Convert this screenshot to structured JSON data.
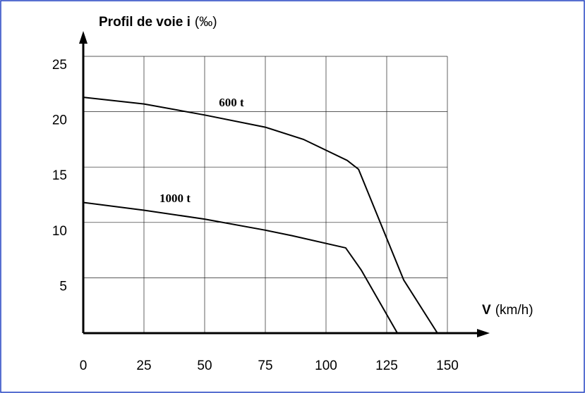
{
  "chart_data": {
    "type": "line",
    "y_label": "Profil de voie i",
    "y_label_unit": "(‰)",
    "x_label": "V",
    "x_label_unit": "(km/h)",
    "xlim": [
      0,
      150
    ],
    "xticks": [
      0,
      25,
      50,
      75,
      100,
      125,
      150
    ],
    "ylim": [
      0,
      25
    ],
    "yticks": [
      5,
      10,
      15,
      20,
      25
    ],
    "grid": true,
    "series": [
      {
        "name": "600 t",
        "color": "#000000",
        "x": [
          0,
          25,
          50,
          75,
          90.7,
          108.7,
          113.4,
          132,
          145.9
        ],
        "values": [
          21.3,
          20.7,
          19.7,
          18.6,
          17.5,
          15.6,
          14.8,
          4.8,
          0
        ]
      },
      {
        "name": "1000 t",
        "color": "#000000",
        "x": [
          0,
          25,
          50,
          75,
          86,
          108.1,
          114.5,
          129.4
        ],
        "values": [
          11.8,
          11.1,
          10.3,
          9.3,
          8.8,
          7.7,
          5.7,
          0
        ]
      }
    ]
  }
}
